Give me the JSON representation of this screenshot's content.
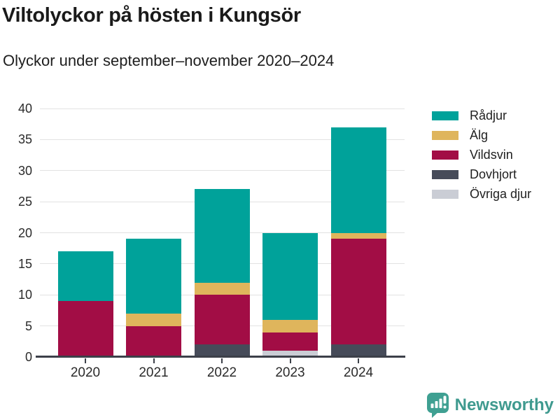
{
  "chart_data": {
    "type": "bar",
    "variant": "stacked-vertical",
    "title": "Viltolyckor på hösten i Kungsör",
    "subtitle": "Olyckor under september–november 2020–2024",
    "categories": [
      "2020",
      "2021",
      "2022",
      "2023",
      "2024"
    ],
    "series": [
      {
        "name": "Rådjur",
        "color": "#00a29a",
        "values": [
          8,
          12,
          15,
          14,
          17
        ]
      },
      {
        "name": "Älg",
        "color": "#dfb55c",
        "values": [
          0,
          2,
          2,
          2,
          1
        ]
      },
      {
        "name": "Vildsvin",
        "color": "#a20d45",
        "values": [
          9,
          5,
          8,
          3,
          17
        ]
      },
      {
        "name": "Dovhjort",
        "color": "#464b59",
        "values": [
          0,
          0,
          2,
          0,
          2
        ]
      },
      {
        "name": "Övriga djur",
        "color": "#cacdd5",
        "values": [
          0,
          0,
          0,
          1,
          0
        ]
      }
    ],
    "stack_order_bottom_to_top": [
      "Övriga djur",
      "Dovhjort",
      "Vildsvin",
      "Älg",
      "Rådjur"
    ],
    "totals": [
      17,
      19,
      27,
      20,
      37
    ],
    "y_ticks": [
      0,
      5,
      10,
      15,
      20,
      25,
      30,
      35,
      40
    ],
    "ylim": [
      0,
      40
    ],
    "xlabel": "",
    "ylabel": "",
    "grid": true,
    "legend_position": "right",
    "colors": {
      "gridline": "#e2e2e2",
      "axis": "#3c4049",
      "text": "#1e1e1e"
    }
  },
  "branding": {
    "wordmark": "Newsworthy",
    "color": "#3f9a8f",
    "icon": "newsworthy-bubble-chart-icon"
  }
}
